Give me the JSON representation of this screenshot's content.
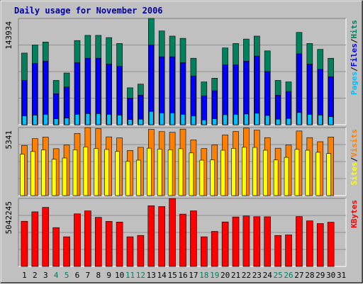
{
  "title": "Daily usage for November 2006",
  "colors": {
    "background": "#c0c0c0",
    "plot_bg": "#ffffff",
    "hits": "#00805c",
    "files": "#0000ff",
    "pages": "#00c0ff",
    "visits": "#ff8000",
    "sites": "#ffff00",
    "kbytes": "#ff0000",
    "weekend_label": "#00805c",
    "weekday_label": "#000000",
    "title": "#0000a0"
  },
  "chart_data": [
    {
      "type": "bar",
      "name": "hits-files-pages",
      "ymax_label": "143934",
      "ylim": [
        0,
        143934
      ],
      "categories": [
        "1",
        "2",
        "3",
        "4",
        "5",
        "6",
        "7",
        "8",
        "9",
        "10",
        "11",
        "12",
        "13",
        "14",
        "15",
        "16",
        "17",
        "18",
        "19",
        "20",
        "21",
        "22",
        "23",
        "24",
        "25",
        "26",
        "27",
        "28",
        "29",
        "30",
        "31"
      ],
      "weekend": [
        "4",
        "5",
        "11",
        "12",
        "18",
        "19",
        "25",
        "26"
      ],
      "legend": [
        {
          "label": "Hits",
          "key": "hits"
        },
        {
          "label": "Files",
          "key": "files"
        },
        {
          "label": "Pages",
          "key": "pages"
        }
      ],
      "series": [
        {
          "name": "Hits",
          "values": [
            97000,
            108000,
            112000,
            60000,
            70000,
            114000,
            121000,
            121000,
            118000,
            110000,
            50000,
            55000,
            143934,
            127000,
            120000,
            117000,
            90000,
            58000,
            63000,
            104000,
            110000,
            116000,
            120000,
            100000,
            60000,
            58000,
            125000,
            110000,
            102000,
            90000,
            0
          ]
        },
        {
          "name": "Files",
          "values": [
            60000,
            83000,
            86000,
            42000,
            51000,
            84000,
            90000,
            90000,
            82000,
            79000,
            36000,
            40000,
            108000,
            92000,
            92000,
            84000,
            66000,
            39000,
            46000,
            81000,
            81000,
            86000,
            93000,
            72000,
            40000,
            45000,
            96000,
            82000,
            75000,
            65000,
            0
          ]
        },
        {
          "name": "Pages",
          "values": [
            12000,
            13000,
            14000,
            8000,
            9000,
            14000,
            15000,
            15000,
            14000,
            13000,
            7000,
            7500,
            18000,
            16000,
            16000,
            14000,
            12000,
            6500,
            8000,
            13500,
            14000,
            14500,
            15500,
            12500,
            7500,
            8500,
            16500,
            14000,
            13000,
            11000,
            0
          ]
        }
      ]
    },
    {
      "type": "bar",
      "name": "visits-sites",
      "ymax_label": "5341",
      "ylim": [
        0,
        5341
      ],
      "categories": [
        "1",
        "2",
        "3",
        "4",
        "5",
        "6",
        "7",
        "8",
        "9",
        "10",
        "11",
        "12",
        "13",
        "14",
        "15",
        "16",
        "17",
        "18",
        "19",
        "20",
        "21",
        "22",
        "23",
        "24",
        "25",
        "26",
        "27",
        "28",
        "29",
        "30",
        "31"
      ],
      "legend": [
        {
          "label": "Visits",
          "key": "visits"
        },
        {
          "label": "Sites",
          "key": "sites"
        }
      ],
      "series": [
        {
          "name": "Visits",
          "values": [
            3940,
            4470,
            4590,
            3680,
            3980,
            4880,
            5340,
            5260,
            4610,
            4530,
            3540,
            3790,
            5200,
            5020,
            4970,
            5220,
            4370,
            3690,
            3980,
            4760,
            5030,
            5300,
            5140,
            4550,
            3720,
            3970,
            5070,
            4550,
            4230,
            4600,
            0
          ]
        },
        {
          "name": "Sites",
          "values": [
            3250,
            3460,
            3580,
            2850,
            2950,
            3600,
            3820,
            3700,
            3620,
            3460,
            2680,
            2780,
            3720,
            3650,
            3600,
            3680,
            3350,
            2780,
            2800,
            3560,
            3710,
            3790,
            3780,
            3560,
            2800,
            3000,
            3630,
            3560,
            3400,
            3300,
            0
          ]
        }
      ]
    },
    {
      "type": "bar",
      "name": "kbytes",
      "ymax_label": "5042245",
      "ylim": [
        0,
        5042245
      ],
      "categories": [
        "1",
        "2",
        "3",
        "4",
        "5",
        "6",
        "7",
        "8",
        "9",
        "10",
        "11",
        "12",
        "13",
        "14",
        "15",
        "16",
        "17",
        "18",
        "19",
        "20",
        "21",
        "22",
        "23",
        "24",
        "25",
        "26",
        "27",
        "28",
        "29",
        "30",
        "31"
      ],
      "legend": [
        {
          "label": "KBytes",
          "key": "kbytes"
        }
      ],
      "series": [
        {
          "name": "KBytes",
          "values": [
            3350000,
            4050000,
            4380000,
            2880000,
            2200000,
            3900000,
            4120000,
            3640000,
            3340000,
            3290000,
            2200000,
            2300000,
            4500000,
            4440000,
            5040000,
            3880000,
            4120000,
            2200000,
            2600000,
            3300000,
            3670000,
            3740000,
            3690000,
            3680000,
            2300000,
            2340000,
            3700000,
            3380000,
            3180000,
            3280000,
            0
          ]
        }
      ]
    }
  ]
}
